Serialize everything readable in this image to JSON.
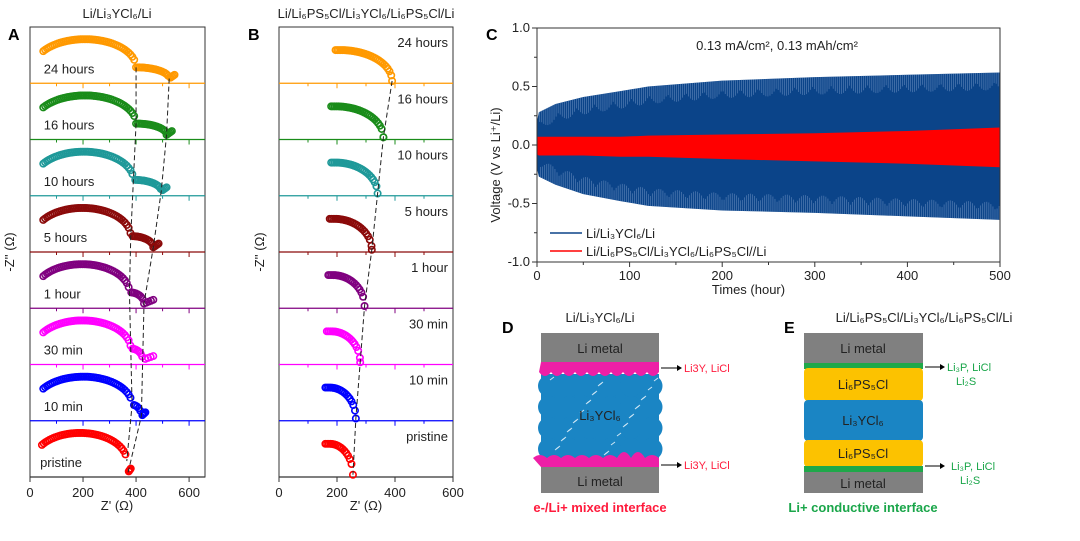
{
  "panels": {
    "a": {
      "letter": "A",
      "title": "Li/Li₃YCl₆/Li",
      "xlabel": "Z' (Ω)",
      "ylabel": "-Z'' (Ω)"
    },
    "b": {
      "letter": "B",
      "title": "Li/Li₆PS₅Cl/Li₃YCl₆/Li₆PS₅Cl/Li",
      "xlabel": "Z' (Ω)",
      "ylabel": "-Z'' (Ω)"
    },
    "c": {
      "letter": "C"
    },
    "d": {
      "letter": "D",
      "title": "Li/Li₃YCl₆/Li",
      "li_metal_top": "Li metal",
      "electrolyte": "Li₃YCl₆",
      "li_metal_bottom": "Li metal",
      "interface_top": "Li3Y, LiCl",
      "interface_bottom": "Li3Y, LiCl",
      "caption": "e-/Li+ mixed interface",
      "caption_color": "#ff1a3c",
      "interphase_color": "#ee1fa6"
    },
    "e": {
      "letter": "E",
      "title": "Li/Li₆PS₅Cl/Li₃YCl₆/Li₆PS₅Cl/Li",
      "li_metal_top": "Li metal",
      "layer_top": "Li₆PS₅Cl",
      "electrolyte": "Li₃YCl₆",
      "layer_bottom": "Li₆PS₅Cl",
      "li_metal_bottom": "Li metal",
      "interface_top_1": "Li₃P, LiCl",
      "interface_top_2": "Li₂S",
      "interface_bottom_1": "Li₃P, LiCl",
      "interface_bottom_2": "Li₂S",
      "caption": "Li+ conductive interface",
      "caption_color": "#1aa64a",
      "interphase_color": "#1fa84a"
    }
  },
  "chart_data": [
    {
      "type": "scatter",
      "panel": "A",
      "title": "Li/Li₃YCl₆/Li",
      "xlabel": "Z' (Ω)",
      "ylabel": "-Z'' (Ω)",
      "xlim": [
        0,
        660
      ],
      "xticks": [
        "0",
        "200",
        "400",
        "600"
      ],
      "stacked": true,
      "series": [
        {
          "name": "24 hours",
          "color": "#ff9900",
          "z_start": 50,
          "r1_end": 400,
          "z_min": 525,
          "z_end": 545
        },
        {
          "name": "16 hours",
          "color": "#1a8c1a",
          "z_start": 50,
          "r1_end": 400,
          "z_min": 515,
          "z_end": 535
        },
        {
          "name": "10 hours",
          "color": "#1f9999",
          "z_start": 50,
          "r1_end": 390,
          "z_min": 495,
          "z_end": 515
        },
        {
          "name": "5 hours",
          "color": "#8b0a0a",
          "z_start": 50,
          "r1_end": 380,
          "z_min": 465,
          "z_end": 485
        },
        {
          "name": "1 hour",
          "color": "#800080",
          "z_start": 50,
          "r1_end": 375,
          "z_min": 430,
          "z_end": 465
        },
        {
          "name": "30 min",
          "color": "#ff00ff",
          "z_start": 50,
          "r1_end": 380,
          "z_min": 425,
          "z_end": 465
        },
        {
          "name": "10 min",
          "color": "#0000ff",
          "z_start": 50,
          "r1_end": 385,
          "z_min": 420,
          "z_end": 435
        },
        {
          "name": "pristine",
          "color": "#ff0000",
          "z_start": 45,
          "r1_end": 365,
          "z_min": 370,
          "z_end": 380
        }
      ]
    },
    {
      "type": "scatter",
      "panel": "B",
      "title": "Li/Li₆PS₅Cl/Li₃YCl₆/Li₆PS₅Cl/Li",
      "xlabel": "Z' (Ω)",
      "ylabel": "-Z'' (Ω)",
      "xlim": [
        0,
        600
      ],
      "xticks": [
        "0",
        "200",
        "400",
        "600"
      ],
      "stacked": true,
      "series": [
        {
          "name": "24 hours",
          "color": "#ff9900",
          "z_start": 195,
          "z_end": 390
        },
        {
          "name": "16 hours",
          "color": "#1a8c1a",
          "z_start": 180,
          "z_end": 360
        },
        {
          "name": "10 hours",
          "color": "#1f9999",
          "z_start": 180,
          "z_end": 340
        },
        {
          "name": "5 hours",
          "color": "#8b0a0a",
          "z_start": 175,
          "z_end": 320
        },
        {
          "name": "1 hour",
          "color": "#800080",
          "z_start": 170,
          "z_end": 295
        },
        {
          "name": "30 min",
          "color": "#ff00ff",
          "z_start": 165,
          "z_end": 280
        },
        {
          "name": "10 min",
          "color": "#0000ff",
          "z_start": 160,
          "z_end": 265
        },
        {
          "name": "pristine",
          "color": "#ff0000",
          "z_start": 160,
          "z_end": 255
        }
      ]
    },
    {
      "type": "area",
      "panel": "C",
      "annotation": "0.13 mA/cm², 0.13 mAh/cm²",
      "xlabel": "Times (hour)",
      "ylabel": "Voltage (V vs Li⁺/Li)",
      "xlim": [
        0,
        500
      ],
      "ylim": [
        -1.0,
        1.0
      ],
      "xticks": [
        "0",
        "100",
        "200",
        "300",
        "400",
        "500"
      ],
      "yticks": [
        "1.0",
        "0.5",
        "0.0",
        "-0.5",
        "-1.0"
      ],
      "legend": "bottom-left",
      "x": [
        0,
        2,
        20,
        50,
        90,
        120,
        200,
        300,
        400,
        500
      ],
      "series": [
        {
          "name": "Li/Li₃YCl₆/Li",
          "color": "#0b4489",
          "upper": [
            0.2,
            0.28,
            0.35,
            0.41,
            0.46,
            0.5,
            0.55,
            0.58,
            0.6,
            0.62
          ],
          "lower": [
            -0.2,
            -0.27,
            -0.34,
            -0.42,
            -0.48,
            -0.52,
            -0.56,
            -0.58,
            -0.61,
            -0.64
          ]
        },
        {
          "name": "Li/Li₆PS₅Cl/Li₃YCl₆/Li₆PS₅Cl//Li",
          "color": "#ff0000",
          "upper": [
            0.07,
            0.07,
            0.07,
            0.07,
            0.07,
            0.08,
            0.09,
            0.1,
            0.12,
            0.15
          ],
          "lower": [
            -0.08,
            -0.09,
            -0.09,
            -0.09,
            -0.1,
            -0.1,
            -0.12,
            -0.14,
            -0.16,
            -0.19
          ]
        }
      ]
    }
  ]
}
